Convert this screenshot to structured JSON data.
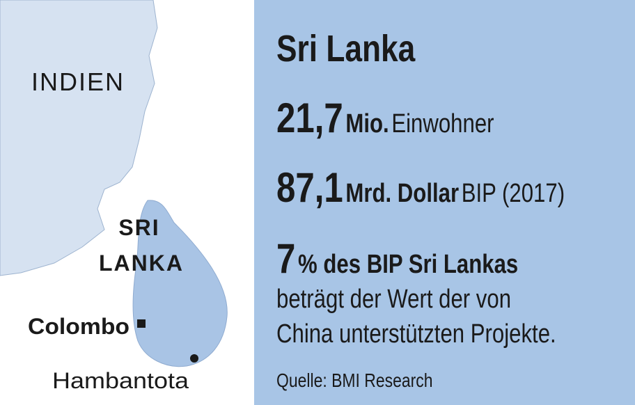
{
  "map": {
    "labels": {
      "india": "INDIEN",
      "sri_lanka_line1": "SRI",
      "sri_lanka_line2": "LANKA",
      "colombo": "Colombo",
      "hambantota": "Hambantota"
    }
  },
  "panel": {
    "title": "Sri Lanka",
    "facts": [
      {
        "value": "21,7",
        "unit": "Mio.",
        "text": "Einwohner"
      },
      {
        "value": "87,1",
        "unit": "Mrd. Dollar",
        "text": "BIP (2017)"
      },
      {
        "value": "7",
        "unit": "% des BIP Sri Lankas",
        "text_lines": [
          "beträgt der Wert der von",
          "China unterstützten Projekte."
        ]
      }
    ],
    "source": "Quelle: BMI Research"
  }
}
